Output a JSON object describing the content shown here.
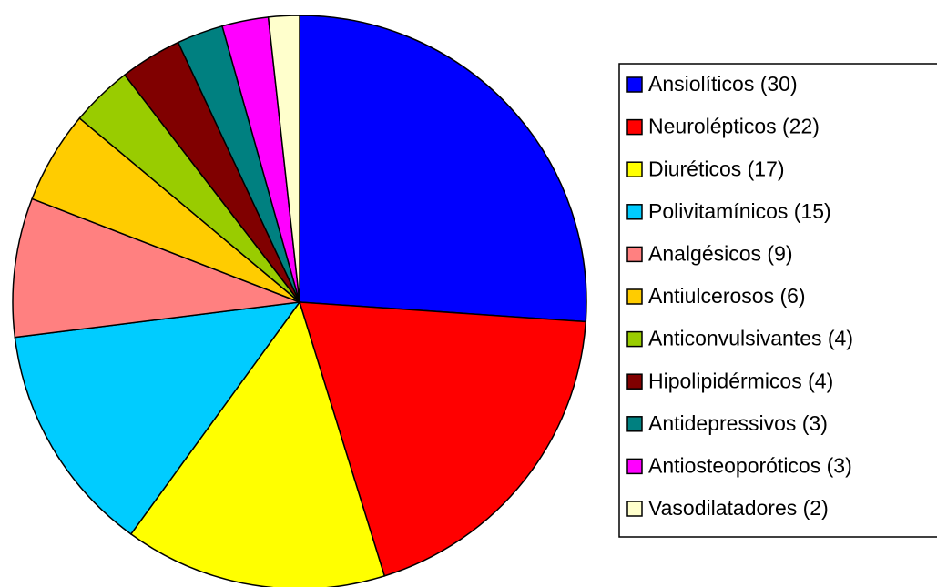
{
  "chart_data": {
    "type": "pie",
    "categories": [
      "Ansiolíticos (30)",
      "Neurolépticos (22)",
      "Diuréticos (17)",
      "Polivitamínicos (15)",
      "Analgésicos (9)",
      "Antiulcerosos (6)",
      "Anticonvulsivantes (4)",
      "Hipolipidérmicos (4)",
      "Antidepressivos (3)",
      "Antiosteoporóticos (3)",
      "Vasodilatadores (2)"
    ],
    "values": [
      30,
      22,
      17,
      15,
      9,
      6,
      4,
      4,
      3,
      3,
      2
    ],
    "colors": [
      "#0000ff",
      "#ff0000",
      "#ffff00",
      "#00ccff",
      "#ff8080",
      "#ffcc00",
      "#99cc00",
      "#800000",
      "#008080",
      "#ff00ff",
      "#ffffcc"
    ],
    "legend": "right"
  }
}
